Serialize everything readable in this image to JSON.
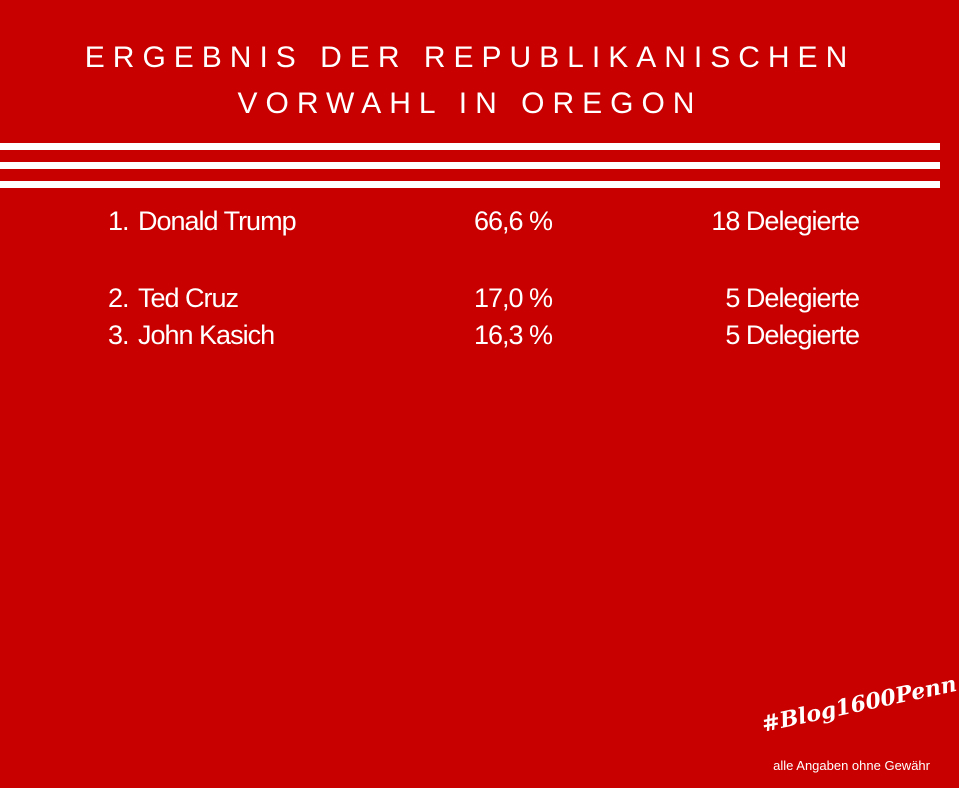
{
  "title": {
    "line1": "ERGEBNIS DER REPUBLIKANISCHEN",
    "line2": "VORWAHL IN OREGON"
  },
  "results": [
    {
      "rank": "1.",
      "name": "Donald Trump",
      "percent": "66,6 %",
      "delegates": "18 Delegierte"
    },
    {
      "rank": "2.",
      "name": "Ted Cruz",
      "percent": "17,0 %",
      "delegates": "5 Delegierte"
    },
    {
      "rank": "3.",
      "name": "John Kasich",
      "percent": "16,3 %",
      "delegates": "5 Delegierte"
    }
  ],
  "footer": {
    "hashtag": "#Blog1600Penn",
    "disclaimer": "alle Angaben ohne Gewähr"
  },
  "colors": {
    "background": "#c80000",
    "text": "#ffffff"
  }
}
